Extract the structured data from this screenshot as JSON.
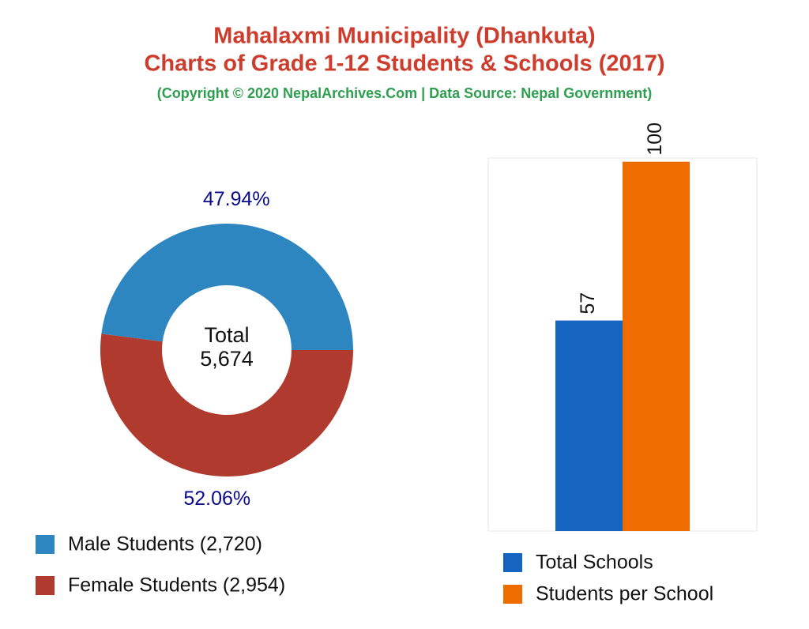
{
  "title": [
    "Mahalaxmi Municipality (Dhankuta)",
    "Charts of Grade 1-12 Students & Schools (2017)"
  ],
  "subtitle": "(Copyright © 2020 NepalArchives.Com | Data Source: Nepal Government)",
  "chart_data": [
    {
      "type": "pie",
      "donut": true,
      "categories": [
        "Male Students (2,720)",
        "Female Students (2,954)"
      ],
      "values": [
        47.94,
        52.06
      ],
      "value_labels": [
        "47.94%",
        "52.06%"
      ],
      "colors": [
        "#2e86c1",
        "#b03a2e"
      ],
      "center_text": [
        "Total",
        "5,674"
      ]
    },
    {
      "type": "bar",
      "categories": [
        null
      ],
      "series": [
        {
          "name": "Total Schools",
          "color": "#1565c0",
          "values": [
            57
          ]
        },
        {
          "name": "Students per School",
          "color": "#ef6c00",
          "values": [
            100
          ]
        }
      ],
      "ylim": [
        0,
        101
      ]
    }
  ]
}
